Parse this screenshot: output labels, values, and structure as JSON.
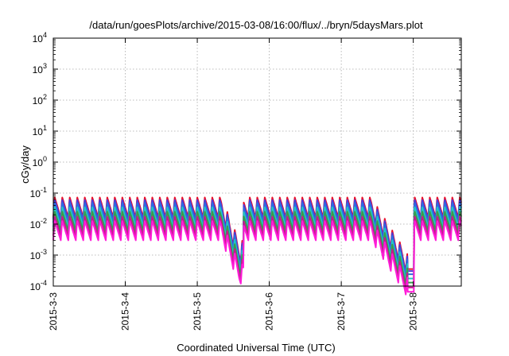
{
  "chart_data": {
    "type": "line",
    "title": "/data/run/goesPlots/archive/2015-03-08/16:00/flux/../bryn/5daysMars.plot",
    "xlabel": "Coordinated Universal Time (UTC)",
    "ylabel": "cGy/day",
    "xlim": [
      "2015-03-03T00:00",
      "2015-03-08T16:00"
    ],
    "x_ticks": [
      "2015-3-3",
      "2015-3-4",
      "2015-3-5",
      "2015-3-6",
      "2015-3-7",
      "2015-3-8"
    ],
    "y_scale": "log",
    "ylim": [
      0.0001,
      10000
    ],
    "y_ticks": [
      {
        "base": "10",
        "exp": "-4"
      },
      {
        "base": "10",
        "exp": "-3"
      },
      {
        "base": "10",
        "exp": "-2"
      },
      {
        "base": "10",
        "exp": "-1"
      },
      {
        "base": "10",
        "exp": "0"
      },
      {
        "base": "10",
        "exp": "1"
      },
      {
        "base": "10",
        "exp": "2"
      },
      {
        "base": "10",
        "exp": "3"
      },
      {
        "base": "10",
        "exp": "4"
      }
    ],
    "grid": true,
    "legend": "none",
    "sawtooth_period_hours": 2.5,
    "features": [
      {
        "x_start": "2015-03-05T08:00",
        "x_min": "2015-03-05T14:00",
        "x_end": "2015-03-05T15:30",
        "min_factor": 0.04
      },
      {
        "x_start": "2015-03-07T10:00",
        "x_min": "2015-03-07T22:00",
        "x_end": "2015-03-08T00:20",
        "min_factor": 0.015
      }
    ],
    "series": [
      {
        "color": "#e8102c",
        "peak": 0.075,
        "trough": 0.016
      },
      {
        "color": "#4d3ad8",
        "peak": 0.062,
        "trough": 0.014
      },
      {
        "color": "#2d6ce0",
        "peak": 0.05,
        "trough": 0.011
      },
      {
        "color": "#22c7c2",
        "peak": 0.036,
        "trough": 0.008
      },
      {
        "color": "#3a9c4c",
        "peak": 0.026,
        "trough": 0.006
      },
      {
        "color": "#c4198e",
        "peak": 0.018,
        "trough": 0.0042
      },
      {
        "color": "#ff1dd8",
        "peak": 0.013,
        "trough": 0.003
      }
    ]
  }
}
